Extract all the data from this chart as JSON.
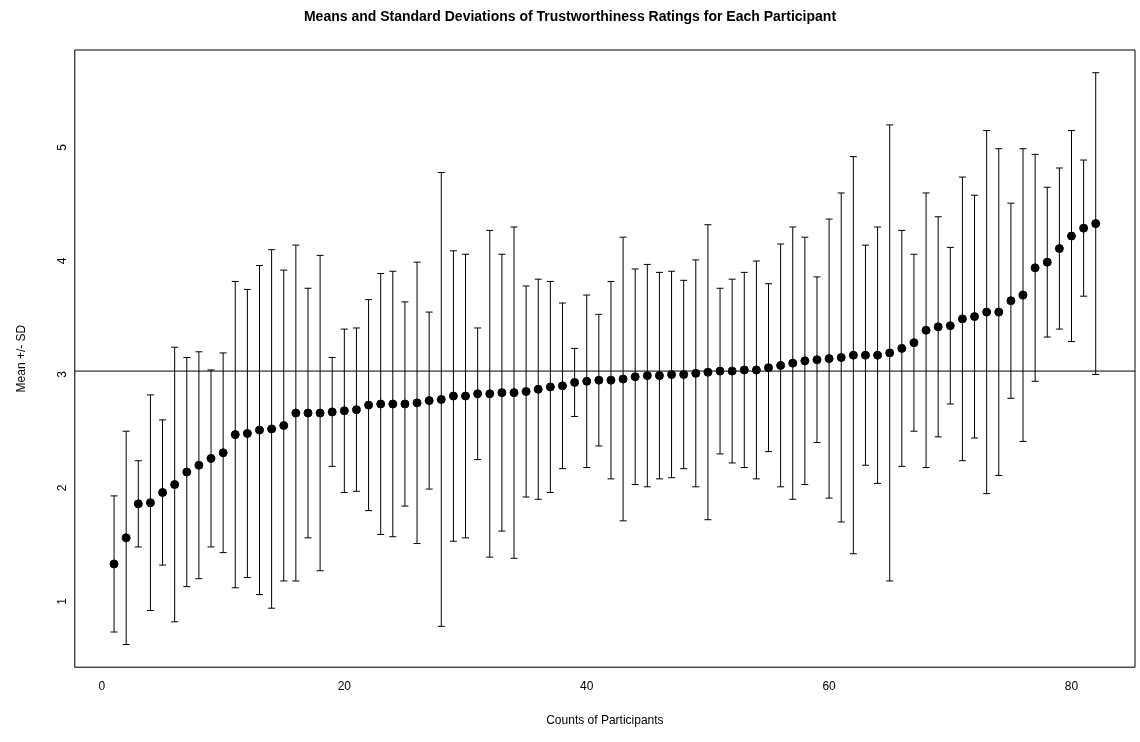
{
  "chart_data": {
    "type": "scatter",
    "title": "Means and Standard Deviations of Trustworthiness Ratings for Each Participant",
    "xlabel": "Counts of Participants",
    "ylabel": "Mean +/- SD",
    "x": [
      1,
      2,
      3,
      4,
      5,
      6,
      7,
      8,
      9,
      10,
      11,
      12,
      13,
      14,
      15,
      16,
      17,
      18,
      19,
      20,
      21,
      22,
      23,
      24,
      25,
      26,
      27,
      28,
      29,
      30,
      31,
      32,
      33,
      34,
      35,
      36,
      37,
      38,
      39,
      40,
      41,
      42,
      43,
      44,
      45,
      46,
      47,
      48,
      49,
      50,
      51,
      52,
      53,
      54,
      55,
      56,
      57,
      58,
      59,
      60,
      61,
      62,
      63,
      64,
      65,
      66,
      67,
      68,
      69,
      70,
      71,
      72,
      73,
      74,
      75,
      76,
      77,
      78,
      79,
      80,
      81,
      82
    ],
    "values": [
      1.3,
      1.53,
      1.83,
      1.84,
      1.93,
      2.0,
      2.11,
      2.17,
      2.23,
      2.28,
      2.44,
      2.45,
      2.48,
      2.49,
      2.52,
      2.63,
      2.63,
      2.63,
      2.64,
      2.65,
      2.66,
      2.7,
      2.71,
      2.71,
      2.71,
      2.72,
      2.74,
      2.75,
      2.78,
      2.78,
      2.8,
      2.8,
      2.81,
      2.81,
      2.82,
      2.84,
      2.86,
      2.87,
      2.9,
      2.91,
      2.92,
      2.92,
      2.93,
      2.95,
      2.96,
      2.96,
      2.97,
      2.97,
      2.98,
      2.99,
      3.0,
      3.0,
      3.01,
      3.01,
      3.03,
      3.05,
      3.07,
      3.09,
      3.1,
      3.11,
      3.12,
      3.14,
      3.14,
      3.14,
      3.16,
      3.2,
      3.25,
      3.36,
      3.39,
      3.4,
      3.46,
      3.48,
      3.52,
      3.52,
      3.62,
      3.67,
      3.91,
      3.96,
      4.08,
      4.19,
      4.26,
      4.3
    ],
    "errors": [
      0.6,
      0.94,
      0.38,
      0.95,
      0.64,
      1.21,
      1.01,
      1.0,
      0.78,
      0.88,
      1.35,
      1.27,
      1.45,
      1.58,
      1.37,
      1.48,
      1.1,
      1.39,
      0.48,
      0.72,
      0.72,
      0.93,
      1.15,
      1.17,
      0.9,
      1.24,
      0.78,
      2.0,
      1.28,
      1.25,
      0.58,
      1.44,
      1.22,
      1.46,
      0.93,
      0.97,
      0.93,
      0.73,
      0.3,
      0.76,
      0.58,
      0.87,
      1.25,
      0.95,
      0.98,
      0.91,
      0.91,
      0.83,
      1.0,
      1.3,
      0.73,
      0.81,
      0.86,
      0.96,
      0.74,
      1.07,
      1.2,
      1.09,
      0.73,
      1.23,
      1.45,
      1.75,
      0.97,
      1.13,
      2.01,
      1.04,
      0.78,
      1.21,
      0.97,
      0.69,
      1.25,
      1.07,
      1.6,
      1.44,
      0.86,
      1.29,
      1.0,
      0.66,
      0.71,
      0.93,
      0.6,
      1.33
    ],
    "color": "#000000",
    "marker": "circle",
    "xlim": [
      -2.24,
      85.24
    ],
    "xticks": [
      0,
      20,
      40,
      60,
      80
    ],
    "ylim": [
      0.39,
      5.83
    ],
    "yticks": [
      1,
      2,
      3,
      4,
      5
    ],
    "ref_lines": [
      {
        "axis": "y",
        "value": 3,
        "color": "#000000"
      }
    ]
  }
}
